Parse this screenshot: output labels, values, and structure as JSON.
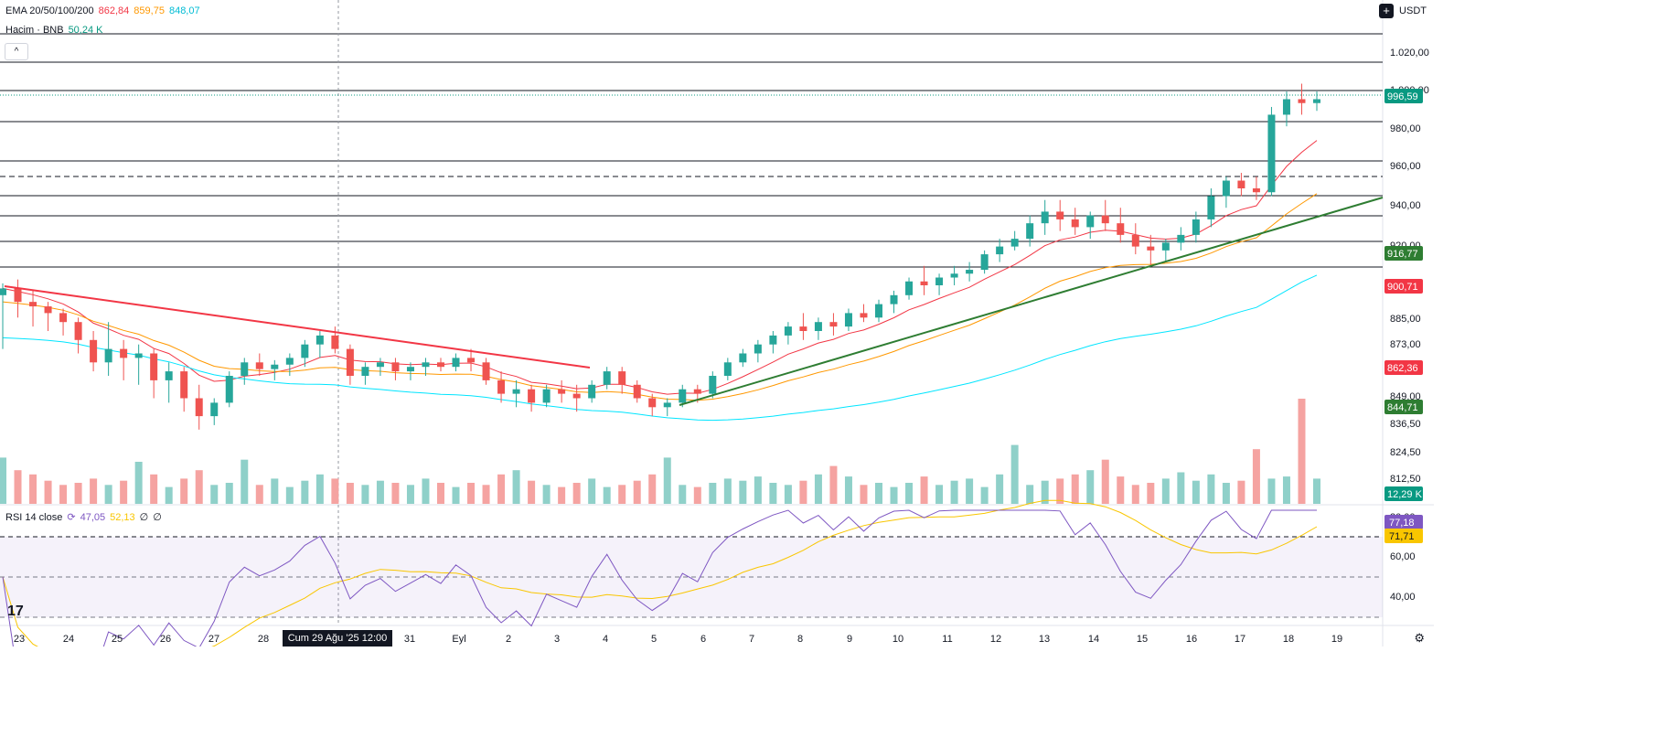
{
  "legend": {
    "ema": {
      "label": "EMA 20/50/100/200",
      "v1": "862,84",
      "v2": "859,75",
      "v3": "848,07",
      "c1": "#f23645",
      "c2": "#ff9800",
      "c3": "#00bcd4"
    },
    "volume": {
      "label": "Hacim · BNB",
      "value": "50,24 K",
      "color": "#089981"
    },
    "collapse_icon": "^"
  },
  "currency": "USDT",
  "rsi_legend": {
    "label": "RSI 14 close",
    "v1": "47,05",
    "v2": "52,13",
    "v3": "∅",
    "v4": "∅"
  },
  "price_axis": {
    "ticks": [
      "1.020,00",
      "1.000,00",
      "980,00",
      "960,00",
      "940,00",
      "920,00",
      "885,00",
      "873,00",
      "849,00",
      "836,50",
      "824,50",
      "812,50"
    ],
    "badges": [
      {
        "text": "996,59",
        "color": "#089981"
      },
      {
        "text": "916,77",
        "color": "#2e7d32"
      },
      {
        "text": "900,71",
        "color": "#f23645"
      },
      {
        "text": "862,36",
        "color": "#f23645"
      },
      {
        "text": "844,71",
        "color": "#2e7d32"
      },
      {
        "text": "12,29 K",
        "color": "#089981"
      }
    ]
  },
  "rsi_axis": {
    "ticks": [
      "80,00",
      "60,00",
      "40,00"
    ],
    "badges": [
      {
        "text": "77,18",
        "color": "#7e57c2"
      },
      {
        "text": "71,71",
        "color": "#f9c600"
      }
    ]
  },
  "time_axis": {
    "labels": [
      "23",
      "24",
      "25",
      "26",
      "27",
      "28",
      "31",
      "Eyl",
      "2",
      "3",
      "4",
      "5",
      "6",
      "7",
      "8",
      "9",
      "10",
      "11",
      "12",
      "13",
      "14",
      "15",
      "16",
      "17",
      "18",
      "19"
    ],
    "crosshair_label": "Cum 29 Ağu '25   12:00"
  },
  "logo_text": "17",
  "colors": {
    "up": "#26a69a",
    "down": "#ef5350",
    "vol_up": "#8fd0c9",
    "vol_down": "#f5a3a1",
    "trend_red": "#f23645",
    "trend_green": "#2e7d32",
    "rsi_line": "#7e57c2",
    "rsi_ma": "#f9c600"
  },
  "chart_data": {
    "type": "candlestick",
    "currency": "USDT",
    "candles": [
      [
        896,
        901,
        872,
        899
      ],
      [
        899,
        903,
        886,
        893
      ],
      [
        893,
        898,
        882,
        891
      ],
      [
        891,
        893,
        880,
        888
      ],
      [
        888,
        890,
        878,
        884
      ],
      [
        884,
        886,
        870,
        876
      ],
      [
        876,
        880,
        862,
        866
      ],
      [
        866,
        884,
        860,
        872
      ],
      [
        872,
        876,
        858,
        868
      ],
      [
        868,
        874,
        856,
        870
      ],
      [
        870,
        872,
        850,
        858
      ],
      [
        858,
        866,
        848,
        862
      ],
      [
        862,
        864,
        844,
        850
      ],
      [
        850,
        856,
        836,
        842
      ],
      [
        842,
        850,
        838,
        848
      ],
      [
        848,
        862,
        846,
        860
      ],
      [
        860,
        868,
        856,
        866
      ],
      [
        866,
        870,
        860,
        863
      ],
      [
        863,
        867,
        858,
        865
      ],
      [
        865,
        870,
        860,
        868
      ],
      [
        868,
        876,
        864,
        874
      ],
      [
        874,
        880,
        868,
        878
      ],
      [
        878,
        882,
        870,
        872
      ],
      [
        872,
        874,
        856,
        860
      ],
      [
        860,
        866,
        856,
        864
      ],
      [
        864,
        868,
        860,
        866
      ],
      [
        866,
        868,
        858,
        862
      ],
      [
        862,
        866,
        858,
        864
      ],
      [
        864,
        868,
        860,
        866
      ],
      [
        866,
        868,
        862,
        864
      ],
      [
        864,
        870,
        862,
        868
      ],
      [
        868,
        872,
        862,
        866
      ],
      [
        866,
        868,
        856,
        858
      ],
      [
        858,
        862,
        848,
        852
      ],
      [
        852,
        858,
        846,
        854
      ],
      [
        854,
        856,
        844,
        848
      ],
      [
        848,
        856,
        846,
        854
      ],
      [
        854,
        858,
        848,
        852
      ],
      [
        852,
        856,
        844,
        850
      ],
      [
        850,
        858,
        848,
        856
      ],
      [
        856,
        864,
        854,
        862
      ],
      [
        862,
        864,
        852,
        856
      ],
      [
        856,
        858,
        848,
        850
      ],
      [
        850,
        852,
        842,
        846
      ],
      [
        846,
        850,
        842,
        848
      ],
      [
        848,
        856,
        846,
        854
      ],
      [
        854,
        856,
        848,
        852
      ],
      [
        852,
        862,
        850,
        860
      ],
      [
        860,
        868,
        858,
        866
      ],
      [
        866,
        872,
        864,
        870
      ],
      [
        870,
        876,
        866,
        874
      ],
      [
        874,
        880,
        870,
        878
      ],
      [
        878,
        884,
        874,
        882
      ],
      [
        882,
        888,
        876,
        880
      ],
      [
        880,
        886,
        876,
        884
      ],
      [
        884,
        888,
        878,
        882
      ],
      [
        882,
        890,
        880,
        888
      ],
      [
        888,
        892,
        884,
        886
      ],
      [
        886,
        894,
        884,
        892
      ],
      [
        892,
        898,
        888,
        896
      ],
      [
        896,
        904,
        894,
        902
      ],
      [
        902,
        910,
        896,
        900
      ],
      [
        900,
        906,
        896,
        904
      ],
      [
        904,
        910,
        900,
        906
      ],
      [
        906,
        912,
        902,
        908
      ],
      [
        908,
        918,
        906,
        916
      ],
      [
        916,
        924,
        912,
        920
      ],
      [
        920,
        928,
        918,
        924
      ],
      [
        924,
        936,
        920,
        932
      ],
      [
        932,
        944,
        926,
        938
      ],
      [
        938,
        944,
        928,
        934
      ],
      [
        934,
        940,
        926,
        930
      ],
      [
        930,
        938,
        924,
        936
      ],
      [
        936,
        944,
        928,
        932
      ],
      [
        932,
        940,
        922,
        926
      ],
      [
        926,
        932,
        916,
        920
      ],
      [
        920,
        926,
        910,
        918
      ],
      [
        918,
        924,
        912,
        922
      ],
      [
        922,
        930,
        918,
        926
      ],
      [
        926,
        938,
        922,
        934
      ],
      [
        934,
        950,
        930,
        946
      ],
      [
        946,
        956,
        940,
        954
      ],
      [
        954,
        958,
        946,
        950
      ],
      [
        950,
        956,
        944,
        948
      ],
      [
        948,
        992,
        946,
        988
      ],
      [
        988,
        1000,
        982,
        996
      ],
      [
        996,
        1004,
        988,
        994
      ],
      [
        994,
        1000,
        990,
        996
      ]
    ],
    "volume_k": [
      22,
      16,
      14,
      11,
      9,
      10,
      12,
      9,
      11,
      20,
      14,
      8,
      12,
      16,
      9,
      10,
      21,
      9,
      12,
      8,
      11,
      14,
      12,
      10,
      9,
      11,
      10,
      9,
      12,
      10,
      8,
      10,
      9,
      14,
      16,
      11,
      9,
      8,
      10,
      12,
      8,
      9,
      11,
      14,
      22,
      9,
      8,
      10,
      12,
      11,
      13,
      10,
      9,
      11,
      14,
      18,
      13,
      9,
      10,
      8,
      10,
      13,
      9,
      11,
      12,
      8,
      14,
      28,
      9,
      11,
      12,
      14,
      16,
      21,
      13,
      9,
      10,
      12,
      15,
      11,
      14,
      10,
      11,
      26,
      12,
      13,
      50,
      12
    ],
    "ema_values": {
      "ema20": "862,84",
      "ema50": "859,75",
      "ema100": "848,07"
    },
    "rsi": {
      "period": 14,
      "source": "close",
      "levels": [
        70,
        50,
        30
      ],
      "ticks": [
        "80,00",
        "60,00",
        "40,00"
      ],
      "last": "77,18",
      "ma_last": "71,71"
    },
    "x_labels": [
      "23",
      "24",
      "25",
      "26",
      "27",
      "28",
      "31",
      "Eyl",
      "2",
      "3",
      "4",
      "5",
      "6",
      "7",
      "8",
      "9",
      "10",
      "11",
      "12",
      "13",
      "14",
      "15",
      "16",
      "17",
      "18",
      "19"
    ]
  }
}
